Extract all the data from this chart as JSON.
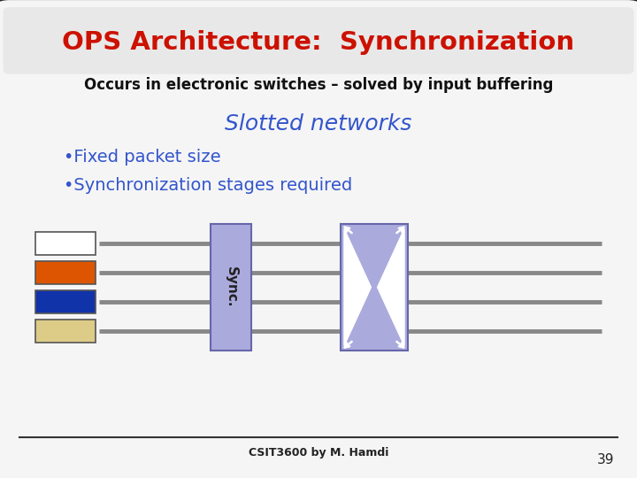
{
  "title": "OPS Architecture:  Synchronization",
  "subtitle": "Occurs in electronic switches – solved by input buffering",
  "slotted_title": "Slotted networks",
  "bullet1": "•Fixed packet size",
  "bullet2": "•Synchronization stages required",
  "footer": "CSIT3600 by M. Hamdi",
  "page_num": "39",
  "bg_color": "#f5f5f5",
  "border_color": "#222222",
  "title_color": "#cc1100",
  "subtitle_color": "#111111",
  "slotted_color": "#3355cc",
  "bullet_color": "#3355cc",
  "sync_box_color": "#aaaadd",
  "switch_box_color": "#aaaadd",
  "line_color": "#888888",
  "packet_colors": [
    "#ffffff",
    "#dd5500",
    "#1133aa",
    "#ddcc88"
  ],
  "packet_border": "#555555",
  "sync_label": "Sync."
}
